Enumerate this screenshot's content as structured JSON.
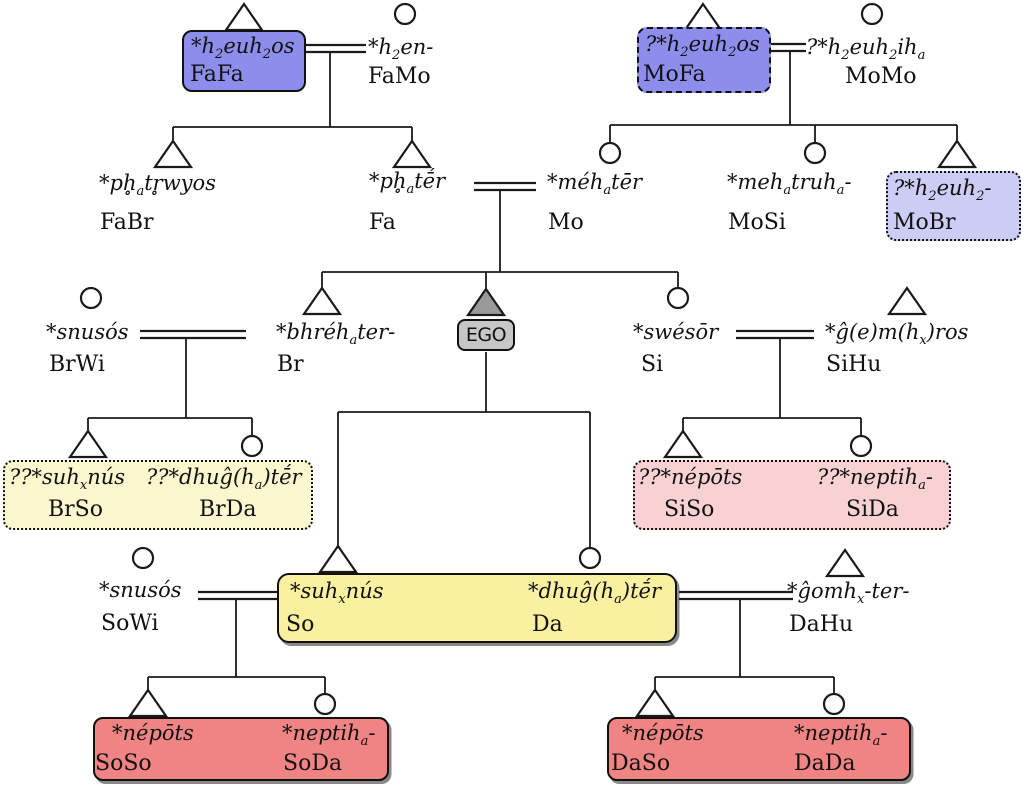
{
  "colors": {
    "blue": "#8d8dec",
    "light_blue": "#ccccf5",
    "pale_yellow": "#faf7cf",
    "yellow": "#f9f0a0",
    "pink": "#f8d2d2",
    "red": "#f08484",
    "gray_box": "#c6c6c6",
    "gray_triangle": "#9a9a9a",
    "line": "#1a1a1a"
  },
  "people": {
    "fafa": {
      "term": "*h{2}euh{2}os",
      "label": "FaFa"
    },
    "famo": {
      "term": "*h{2}en-",
      "label": "FaMo"
    },
    "mofa": {
      "term": "?*h{2}euh{2}os",
      "label": "MoFa"
    },
    "momo": {
      "term": "?*h{2}euh{2}ih{a}",
      "label": "MoMo"
    },
    "fabr": {
      "term": "*ph̥{a}tr̥wyos",
      "label": "FaBr"
    },
    "fa": {
      "term": "*ph̥{a}tḗr",
      "label": "Fa"
    },
    "mo": {
      "term": "*méh{a}tēr",
      "label": "Mo"
    },
    "mosi": {
      "term": "*meh{a}truh{a}-",
      "label": "MoSi"
    },
    "mobr": {
      "term": "?*h{2}euh{2}-",
      "label": "MoBr"
    },
    "brwi": {
      "term": "*snusós",
      "label": "BrWi"
    },
    "br": {
      "term": "*bhréh{a}ter-",
      "label": "Br"
    },
    "ego": {
      "label": "EGO"
    },
    "si": {
      "term": "*swésōr",
      "label": "Si"
    },
    "sihu": {
      "term": "*ĝ(e)m(h{x})ros",
      "label": "SiHu"
    },
    "brso": {
      "term": "??*suh{x}nús",
      "label": "BrSo"
    },
    "brda": {
      "term": "??*dhuĝ(h{a})tḗr",
      "label": "BrDa"
    },
    "siso": {
      "term": "??*népōts",
      "label": "SiSo"
    },
    "sida": {
      "term": "??*neptih{a}-",
      "label": "SiDa"
    },
    "sowi": {
      "term": "*snusós",
      "label": "SoWi"
    },
    "so": {
      "term": "*suh{x}nús",
      "label": "So"
    },
    "da": {
      "term": "*dhuĝ(h{a})tḗr",
      "label": "Da"
    },
    "dahu": {
      "term": "*ĝomh{x}-ter-",
      "label": "DaHu"
    },
    "soso": {
      "term": "*népōts",
      "label": "SoSo"
    },
    "soda": {
      "term": "*neptih{a}-",
      "label": "SoDa"
    },
    "daso": {
      "term": "*népōts",
      "label": "DaSo"
    },
    "dada": {
      "term": "*neptih{a}-",
      "label": "DaDa"
    }
  }
}
